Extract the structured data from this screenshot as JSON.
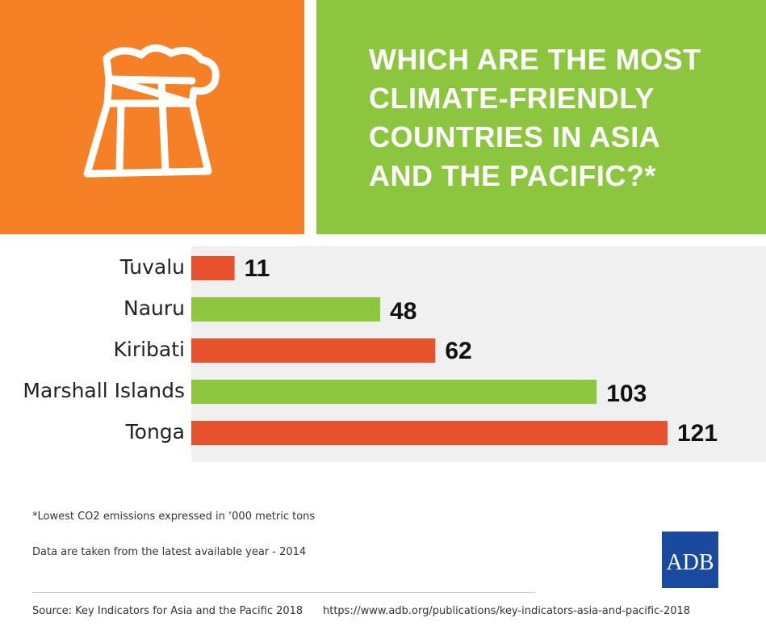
{
  "chart_data": {
    "type": "bar",
    "orientation": "horizontal",
    "title": "WHICH ARE THE MOST\nCLIMATE-FRIENDLY\nCOUNTRIES IN ASIA\nAND THE PACIFIC?*",
    "categories": [
      "Tuvalu",
      "Nauru",
      "Kiribati",
      "Marshall Islands",
      "Tonga"
    ],
    "values": [
      11,
      48,
      62,
      103,
      121
    ],
    "colors": [
      "#e8532e",
      "#8dc63f",
      "#e8532e",
      "#8dc63f",
      "#e8532e"
    ]
  },
  "notes": [
    "*Lowest CO2 emissions expressed in ‘000 metric tons",
    "Data are taken from the latest available year - 2014"
  ],
  "source": "Source: Key Indicators for Asia and the Pacific 2018",
  "url": "https://www.adb.org/publications/key-indicators-asia-and-pacific-2018",
  "logo": "ADB"
}
